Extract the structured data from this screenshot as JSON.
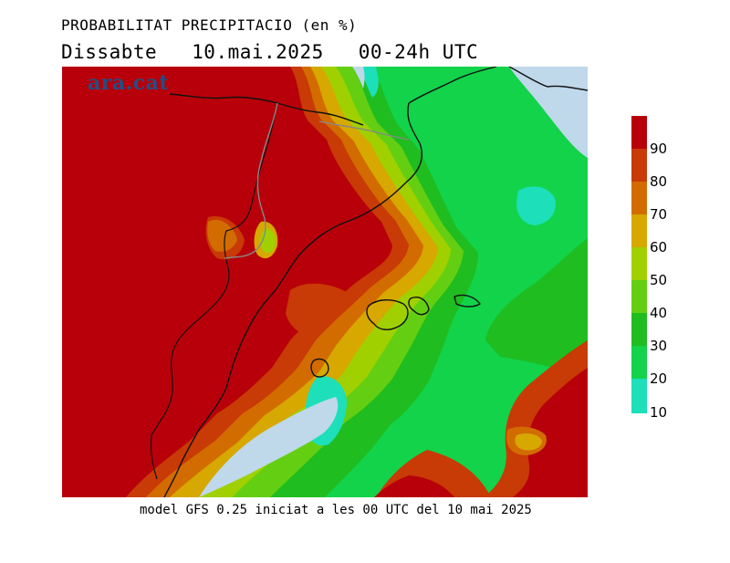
{
  "header": {
    "title": "PROBABILITAT PRECIPITACIO (en %)",
    "day": "Dissabte",
    "date": "10.mai.2025",
    "period": "00-24h UTC"
  },
  "logo": {
    "text": "ara.cat"
  },
  "footer": {
    "text": "model GFS 0.25 iniciat a les 00 UTC del 10 mai 2025"
  },
  "legend": {
    "bins": [
      {
        "label": "90",
        "color": "#b8000a"
      },
      {
        "label": "80",
        "color": "#c83a06"
      },
      {
        "label": "70",
        "color": "#d26c00"
      },
      {
        "label": "60",
        "color": "#d6a800"
      },
      {
        "label": "50",
        "color": "#a0d000"
      },
      {
        "label": "40",
        "color": "#64cf12"
      },
      {
        "label": "30",
        "color": "#1fbd1f"
      },
      {
        "label": "20",
        "color": "#12d34a"
      },
      {
        "label": "10",
        "color": "#1ddfb9"
      }
    ],
    "low_color": "#1ddfb9"
  },
  "map": {
    "colors": {
      "p90": "#b8000a",
      "p80": "#c83a06",
      "p70": "#d26c00",
      "p60": "#d6a800",
      "p50": "#a0d000",
      "p40": "#64cf12",
      "p30": "#1fbd1f",
      "p20": "#12d34a",
      "p10": "#1ddfb9",
      "sea": "#bfd8ea",
      "coast": "#111111",
      "border": "#888888"
    }
  }
}
